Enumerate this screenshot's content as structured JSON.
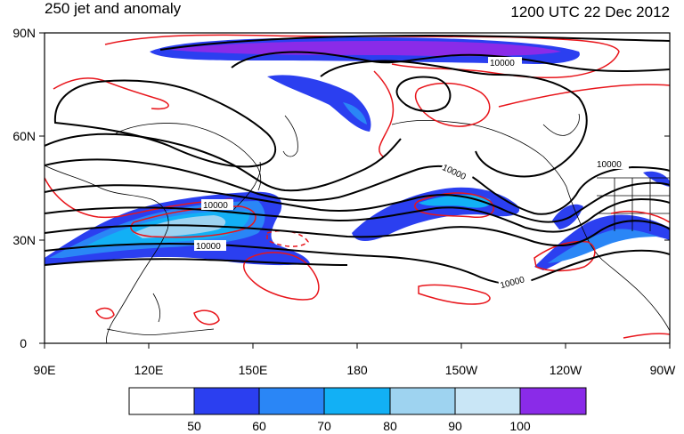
{
  "title_left": "250 jet and anomaly",
  "title_right": "1200 UTC 22 Dec 2012",
  "map": {
    "lat_labels": [
      "90N",
      "60N",
      "30N",
      "0"
    ],
    "lon_labels": [
      "90E",
      "120E",
      "150E",
      "180",
      "150W",
      "120W",
      "90W"
    ],
    "height_contour_labels": [
      "10000",
      "10000",
      "10000",
      "10000",
      "10000",
      "10000"
    ],
    "colors": {
      "height_contour": "#000000",
      "anomaly_contour": "#e8151b",
      "coastline": "#000000"
    }
  },
  "colorbar": {
    "tick_labels": [
      "50",
      "60",
      "70",
      "80",
      "90",
      "100"
    ],
    "fill_colors": [
      "#ffffff",
      "#2b3ff0",
      "#2a86f6",
      "#12b0f5",
      "#9ed3f0",
      "#c9e6f6",
      "#8a2be8"
    ]
  }
}
